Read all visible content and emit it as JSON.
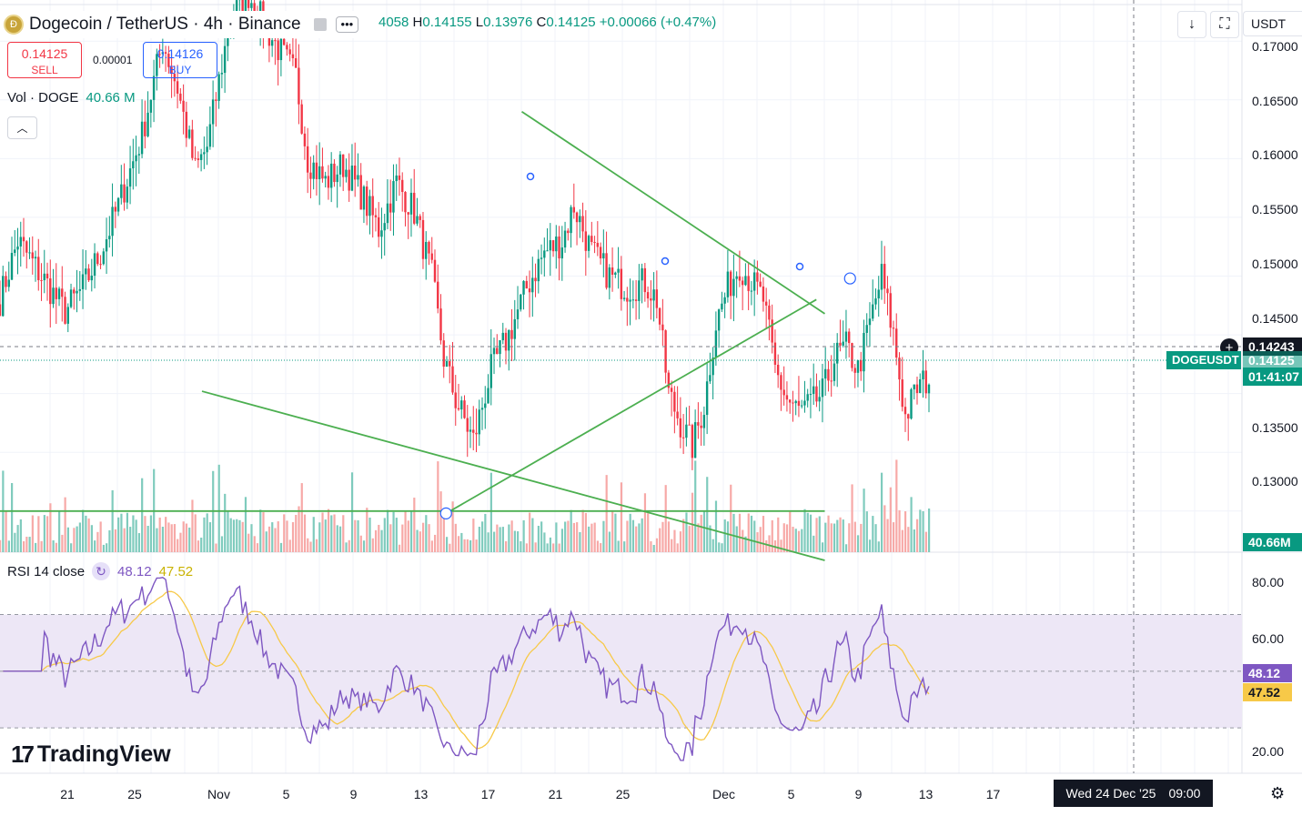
{
  "header": {
    "symbol_title": "Dogecoin / TetherUS · 4h · Binance",
    "coin_icon": "dogecoin-coin-icon",
    "ohlc": {
      "open_partial": "4058",
      "high_label": "H",
      "high": "0.14155",
      "low_label": "L",
      "low": "0.13976",
      "close_label": "C",
      "close": "0.14125",
      "change": "+0.00066 (+0.47%)"
    }
  },
  "trade": {
    "sell_price": "0.14125",
    "sell_label": "SELL",
    "spread": "0.00001",
    "buy_price": "0.14126",
    "buy_label": "BUY"
  },
  "volume_legend": {
    "label": "Vol · DOGE",
    "value": "40.66 M"
  },
  "rsi_legend": {
    "label": "RSI 14 close",
    "rsi_value": "48.12",
    "ma_value": "47.52"
  },
  "toolbar_right": {
    "download_icon": "arrow-down-icon",
    "fullscreen_icon": "fullscreen-icon",
    "currency": "USDT"
  },
  "price_axis": {
    "ticks": [
      "0.17000",
      "0.16500",
      "0.16000",
      "0.15500",
      "0.15000",
      "0.14500",
      "0.13500",
      "0.13000"
    ],
    "crosshair_price": "0.14243",
    "symbol_tag": "DOGEUSDT",
    "last_price": "0.14125",
    "countdown": "01:41:07",
    "volume_tag": "40.66M"
  },
  "rsi_axis": {
    "ticks": [
      "80.00",
      "60.00",
      "20.00"
    ],
    "rsi_tag": "48.12",
    "ma_tag": "47.52"
  },
  "time_axis": {
    "labels": [
      "21",
      "25",
      "Nov",
      "5",
      "9",
      "13",
      "17",
      "21",
      "25",
      "Dec",
      "5",
      "9",
      "13",
      "17"
    ],
    "crosshair_date": "Wed 24 Dec '25",
    "crosshair_time": "09:00"
  },
  "branding": {
    "logo_text": "TradingView"
  },
  "colors": {
    "up": "#089981",
    "down": "#f23645",
    "trendline": "#4caf50",
    "rsi": "#7e57c2",
    "rsi_ma": "#f7c948",
    "rsi_band": "#ede7f6"
  },
  "chart_data": {
    "type": "candlestick",
    "interval": "4h",
    "ylim": [
      0.1265,
      0.1735
    ],
    "rsi_ylim": [
      14,
      92
    ],
    "anchors": [
      [
        0,
        0.148
      ],
      [
        6,
        0.153
      ],
      [
        14,
        0.15
      ],
      [
        22,
        0.147
      ],
      [
        28,
        0.149
      ],
      [
        34,
        0.152
      ],
      [
        40,
        0.156
      ],
      [
        48,
        0.162
      ],
      [
        55,
        0.17
      ],
      [
        60,
        0.166
      ],
      [
        66,
        0.159
      ],
      [
        70,
        0.161
      ],
      [
        75,
        0.168
      ],
      [
        78,
        0.172
      ],
      [
        84,
        0.174
      ],
      [
        90,
        0.171
      ],
      [
        95,
        0.169
      ],
      [
        100,
        0.167
      ],
      [
        104,
        0.16
      ],
      [
        110,
        0.158
      ],
      [
        116,
        0.1595
      ],
      [
        122,
        0.157
      ],
      [
        128,
        0.154
      ],
      [
        134,
        0.158
      ],
      [
        140,
        0.1555
      ],
      [
        146,
        0.15
      ],
      [
        150,
        0.143
      ],
      [
        154,
        0.1395
      ],
      [
        160,
        0.136
      ],
      [
        166,
        0.142
      ],
      [
        172,
        0.145
      ],
      [
        178,
        0.149
      ],
      [
        184,
        0.152
      ],
      [
        190,
        0.153
      ],
      [
        194,
        0.156
      ],
      [
        200,
        0.152
      ],
      [
        206,
        0.15
      ],
      [
        212,
        0.149
      ],
      [
        218,
        0.1495
      ],
      [
        222,
        0.148
      ],
      [
        226,
        0.14
      ],
      [
        230,
        0.1375
      ],
      [
        234,
        0.1355
      ],
      [
        238,
        0.139
      ],
      [
        242,
        0.146
      ],
      [
        246,
        0.149
      ],
      [
        250,
        0.151
      ],
      [
        254,
        0.1495
      ],
      [
        258,
        0.148
      ],
      [
        262,
        0.142
      ],
      [
        266,
        0.1395
      ],
      [
        270,
        0.1385
      ],
      [
        274,
        0.139
      ],
      [
        278,
        0.14
      ],
      [
        282,
        0.143
      ],
      [
        286,
        0.144
      ],
      [
        290,
        0.142
      ],
      [
        294,
        0.146
      ],
      [
        298,
        0.15
      ],
      [
        302,
        0.145
      ],
      [
        306,
        0.138
      ],
      [
        310,
        0.1405
      ],
      [
        314,
        0.1413
      ]
    ],
    "trendlines": [
      {
        "name": "descending-resistance",
        "p1": [
          3.0,
          0.164
        ],
        "p2": [
          21.0,
          0.1468
        ]
      },
      {
        "name": "ascending-support",
        "p1": [
          -1.5,
          0.1298
        ],
        "p2": [
          20.5,
          0.148
        ]
      },
      {
        "name": "lower-descending-line",
        "p1": [
          -16.0,
          0.1402
        ],
        "p2": [
          21.0,
          0.1258
        ]
      },
      {
        "name": "horizontal-support",
        "p1": [
          -32.0,
          0.13
        ],
        "p2": [
          21.0,
          0.13
        ]
      }
    ],
    "time_ticks": [
      {
        "label": "21",
        "day": -24
      },
      {
        "label": "25",
        "day": -20
      },
      {
        "label": "Nov",
        "day": -15
      },
      {
        "label": "5",
        "day": -11
      },
      {
        "label": "9",
        "day": -7
      },
      {
        "label": "13",
        "day": -3
      },
      {
        "label": "17",
        "day": 1
      },
      {
        "label": "21",
        "day": 5
      },
      {
        "label": "25",
        "day": 9
      },
      {
        "label": "Dec",
        "day": 15
      },
      {
        "label": "5",
        "day": 19
      },
      {
        "label": "9",
        "day": 23
      },
      {
        "label": "13",
        "day": 27
      },
      {
        "label": "17",
        "day": 31
      }
    ]
  }
}
